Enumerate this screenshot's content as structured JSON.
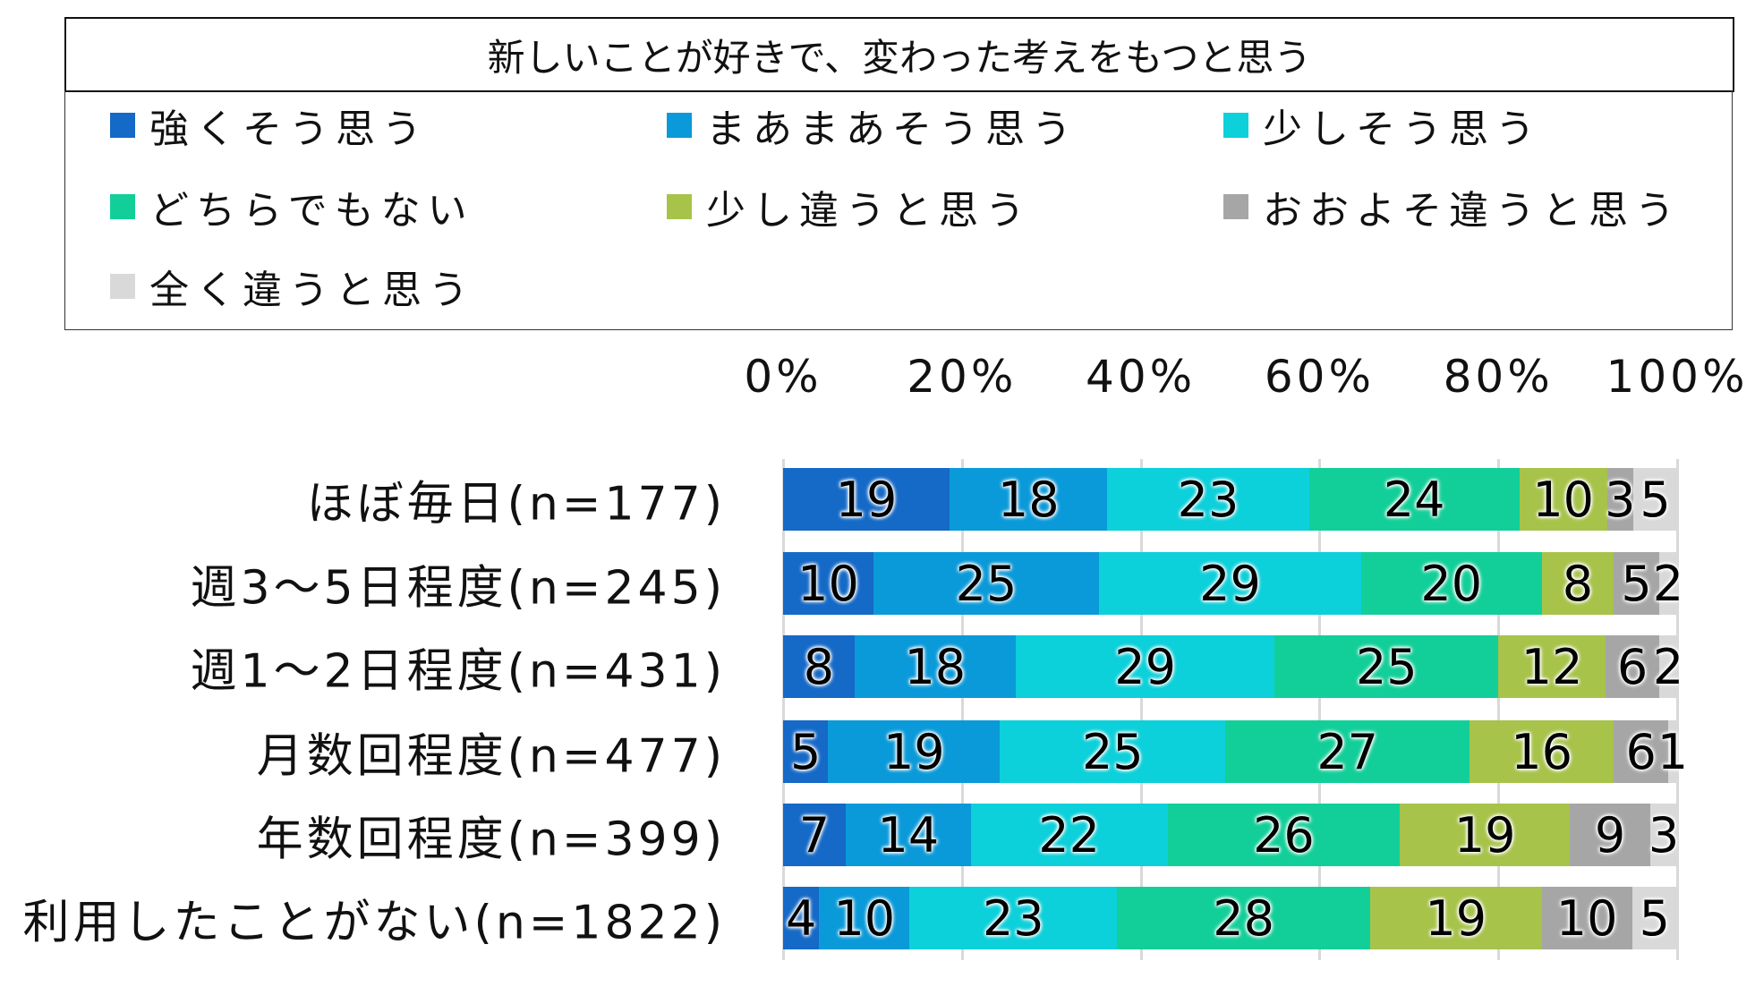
{
  "chart_data": {
    "type": "bar",
    "orientation": "horizontal-stacked-100",
    "title": "新しいことが好きで、変わった考えをもつと思う",
    "xlabel": "",
    "ylabel": "",
    "xlim": [
      0,
      100
    ],
    "x_ticks": [
      "0%",
      "20%",
      "40%",
      "60%",
      "80%",
      "100%"
    ],
    "grid": true,
    "legend_position": "top",
    "categories": [
      "ほぼ毎日(n=177)",
      "週3～5日程度(n=245)",
      "週1～2日程度(n=431)",
      "月数回程度(n=477)",
      "年数回程度(n=399)",
      "利用したことがない(n=1822)"
    ],
    "series": [
      {
        "name": "強くそう思う",
        "color": "#1569c7",
        "values": [
          19,
          10,
          8,
          5,
          7,
          4
        ]
      },
      {
        "name": "まあまあそう思う",
        "color": "#0a9ad9",
        "values": [
          18,
          25,
          18,
          19,
          14,
          10
        ]
      },
      {
        "name": "少しそう思う",
        "color": "#0cd0da",
        "values": [
          23,
          29,
          29,
          25,
          22,
          23
        ]
      },
      {
        "name": "どちらでもない",
        "color": "#12cf99",
        "values": [
          24,
          20,
          25,
          27,
          26,
          28
        ]
      },
      {
        "name": "少し違うと思う",
        "color": "#a7c34a",
        "values": [
          10,
          8,
          12,
          16,
          19,
          19
        ]
      },
      {
        "name": "おおよそ違うと思う",
        "color": "#a6a6a6",
        "values": [
          3,
          5,
          6,
          6,
          9,
          10
        ]
      },
      {
        "name": "全く違うと思う",
        "color": "#d9d9d9",
        "values": [
          5,
          2,
          2,
          1,
          3,
          5
        ]
      }
    ]
  }
}
